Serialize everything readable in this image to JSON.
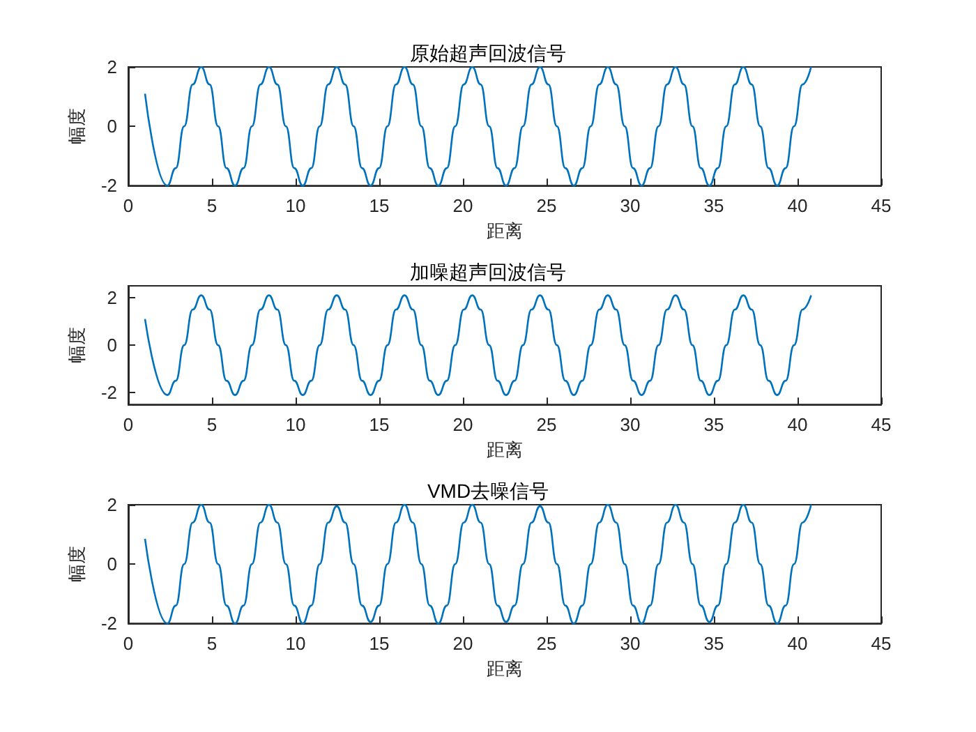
{
  "chart_data": [
    {
      "type": "line",
      "title": "原始超声回波信号",
      "xlabel": "距离",
      "ylabel": "幅度",
      "color": "#0072bd",
      "marker": "none",
      "xlim": [
        0,
        45
      ],
      "xticks": [
        0,
        5,
        10,
        15,
        20,
        25,
        30,
        35,
        40,
        45
      ],
      "ylim": [
        -2,
        2
      ],
      "yticks": [
        -2,
        0,
        2
      ],
      "x": [
        1,
        2.33,
        2.84,
        3.34,
        3.85,
        4.36,
        4.86,
        5.37,
        5.87,
        6.38,
        6.89,
        7.39,
        7.9,
        8.41,
        8.91,
        9.42,
        9.92,
        10.43,
        10.94,
        11.44,
        11.95,
        12.46,
        12.96,
        13.47,
        13.97,
        14.48,
        14.99,
        15.49,
        16,
        16.51,
        17.01,
        17.52,
        18.02,
        18.53,
        19.04,
        19.54,
        20.05,
        20.56,
        21.06,
        21.57,
        22.07,
        22.58,
        23.09,
        23.59,
        24.1,
        24.61,
        25.11,
        25.62,
        26.12,
        26.63,
        27.14,
        27.64,
        28.15,
        28.66,
        29.16,
        29.67,
        30.17,
        30.68,
        31.19,
        31.69,
        32.2,
        32.71,
        33.21,
        33.72,
        34.22,
        34.73,
        35.24,
        35.74,
        36.25,
        36.76,
        37.26,
        37.77,
        38.27,
        38.78,
        39.29,
        39.79,
        40.3,
        40.81
      ],
      "values": [
        1.1,
        -2,
        -1.41,
        0,
        1.41,
        2,
        1.41,
        0,
        -1.41,
        -2,
        -1.41,
        0,
        1.41,
        2,
        1.41,
        0,
        -1.41,
        -2,
        -1.41,
        0,
        1.41,
        2,
        1.41,
        0,
        -1.41,
        -2,
        -1.41,
        0,
        1.41,
        2,
        1.41,
        0,
        -1.41,
        -2,
        -1.41,
        0,
        1.41,
        2,
        1.41,
        0,
        -1.41,
        -2,
        -1.41,
        0,
        1.41,
        2,
        1.41,
        0,
        -1.41,
        -2,
        -1.41,
        0,
        1.41,
        2,
        1.41,
        0,
        -1.41,
        -2,
        -1.41,
        0,
        1.41,
        2,
        1.41,
        0,
        -1.41,
        -2,
        -1.41,
        0,
        1.41,
        2,
        1.41,
        0,
        -1.41,
        -2,
        -1.41,
        0,
        1.41,
        2
      ]
    },
    {
      "type": "line",
      "title": "加噪超声回波信号",
      "xlabel": "距离",
      "ylabel": "幅度",
      "color": "#0072bd",
      "marker": "none",
      "xlim": [
        0,
        45
      ],
      "xticks": [
        0,
        5,
        10,
        15,
        20,
        25,
        30,
        35,
        40,
        45
      ],
      "ylim": [
        -2.5,
        2.5
      ],
      "yticks": [
        -2,
        0,
        2
      ],
      "x": [
        1,
        2.33,
        2.84,
        3.34,
        3.85,
        4.36,
        4.86,
        5.37,
        5.87,
        6.38,
        6.89,
        7.39,
        7.9,
        8.41,
        8.91,
        9.42,
        9.92,
        10.43,
        10.94,
        11.44,
        11.95,
        12.46,
        12.96,
        13.47,
        13.97,
        14.48,
        14.99,
        15.49,
        16,
        16.51,
        17.01,
        17.52,
        18.02,
        18.53,
        19.04,
        19.54,
        20.05,
        20.56,
        21.06,
        21.57,
        22.07,
        22.58,
        23.09,
        23.59,
        24.1,
        24.61,
        25.11,
        25.62,
        26.12,
        26.63,
        27.14,
        27.64,
        28.15,
        28.66,
        29.16,
        29.67,
        30.17,
        30.68,
        31.19,
        31.69,
        32.2,
        32.71,
        33.21,
        33.72,
        34.22,
        34.73,
        35.24,
        35.74,
        36.25,
        36.76,
        37.26,
        37.77,
        38.27,
        38.78,
        39.29,
        39.79,
        40.3,
        40.81
      ],
      "values": [
        1.1,
        -2.1,
        -1.5,
        0,
        1.5,
        2.1,
        1.5,
        0,
        -1.5,
        -2.1,
        -1.5,
        0,
        1.5,
        2.1,
        1.5,
        0,
        -1.5,
        -2.1,
        -1.5,
        0,
        1.5,
        2.1,
        1.5,
        0,
        -1.5,
        -2.1,
        -1.5,
        0,
        1.5,
        2.1,
        1.5,
        0,
        -1.5,
        -2.1,
        -1.5,
        0,
        1.5,
        2.1,
        1.5,
        0,
        -1.5,
        -2.1,
        -1.5,
        0,
        1.5,
        2.1,
        1.5,
        0,
        -1.5,
        -2.1,
        -1.5,
        0,
        1.5,
        2.1,
        1.5,
        0,
        -1.5,
        -2.1,
        -1.5,
        0,
        1.5,
        2.1,
        1.5,
        0,
        -1.5,
        -2.1,
        -1.5,
        0,
        1.5,
        2.1,
        1.5,
        0,
        -1.5,
        -2.1,
        -1.5,
        0,
        1.5,
        2.1
      ]
    },
    {
      "type": "line",
      "title": "VMD去噪信号",
      "xlabel": "距离",
      "ylabel": "幅度",
      "color": "#0072bd",
      "marker": "none",
      "xlim": [
        0,
        45
      ],
      "xticks": [
        0,
        5,
        10,
        15,
        20,
        25,
        30,
        35,
        40,
        45
      ],
      "ylim": [
        -2,
        2
      ],
      "yticks": [
        -2,
        0,
        2
      ],
      "x": [
        1,
        2.33,
        2.84,
        3.34,
        3.85,
        4.36,
        4.86,
        5.37,
        5.87,
        6.38,
        6.89,
        7.39,
        7.9,
        8.41,
        8.91,
        9.42,
        9.92,
        10.43,
        10.94,
        11.44,
        11.95,
        12.46,
        12.96,
        13.47,
        13.97,
        14.48,
        14.99,
        15.49,
        16,
        16.51,
        17.01,
        17.52,
        18.02,
        18.53,
        19.04,
        19.54,
        20.05,
        20.56,
        21.06,
        21.57,
        22.07,
        22.58,
        23.09,
        23.59,
        24.1,
        24.61,
        25.11,
        25.62,
        26.12,
        26.63,
        27.14,
        27.64,
        28.15,
        28.66,
        29.16,
        29.67,
        30.17,
        30.68,
        31.19,
        31.69,
        32.2,
        32.71,
        33.21,
        33.72,
        34.22,
        34.73,
        35.24,
        35.74,
        36.25,
        36.76,
        37.26,
        37.77,
        38.27,
        38.78,
        39.29,
        39.79,
        40.3,
        40.81
      ],
      "values": [
        0.85,
        -2,
        -1.4,
        0,
        1.4,
        2,
        1.4,
        0,
        -1.4,
        -2,
        -1.4,
        0,
        1.4,
        2,
        1.4,
        0,
        -1.4,
        -2,
        -1.4,
        0,
        1.4,
        1.95,
        1.4,
        0,
        -1.4,
        -1.95,
        -1.4,
        0,
        1.4,
        2,
        1.4,
        0,
        -1.4,
        -2,
        -1.4,
        0,
        1.4,
        2,
        1.4,
        0,
        -1.4,
        -1.95,
        -1.4,
        0,
        1.4,
        1.95,
        1.4,
        0,
        -1.4,
        -2,
        -1.4,
        0,
        1.4,
        2,
        1.4,
        0,
        -1.4,
        -2,
        -1.4,
        0,
        1.4,
        2,
        1.4,
        0,
        -1.4,
        -1.95,
        -1.4,
        0,
        1.4,
        2,
        1.4,
        0,
        -1.4,
        -2,
        -1.4,
        0,
        1.4,
        2
      ]
    }
  ]
}
